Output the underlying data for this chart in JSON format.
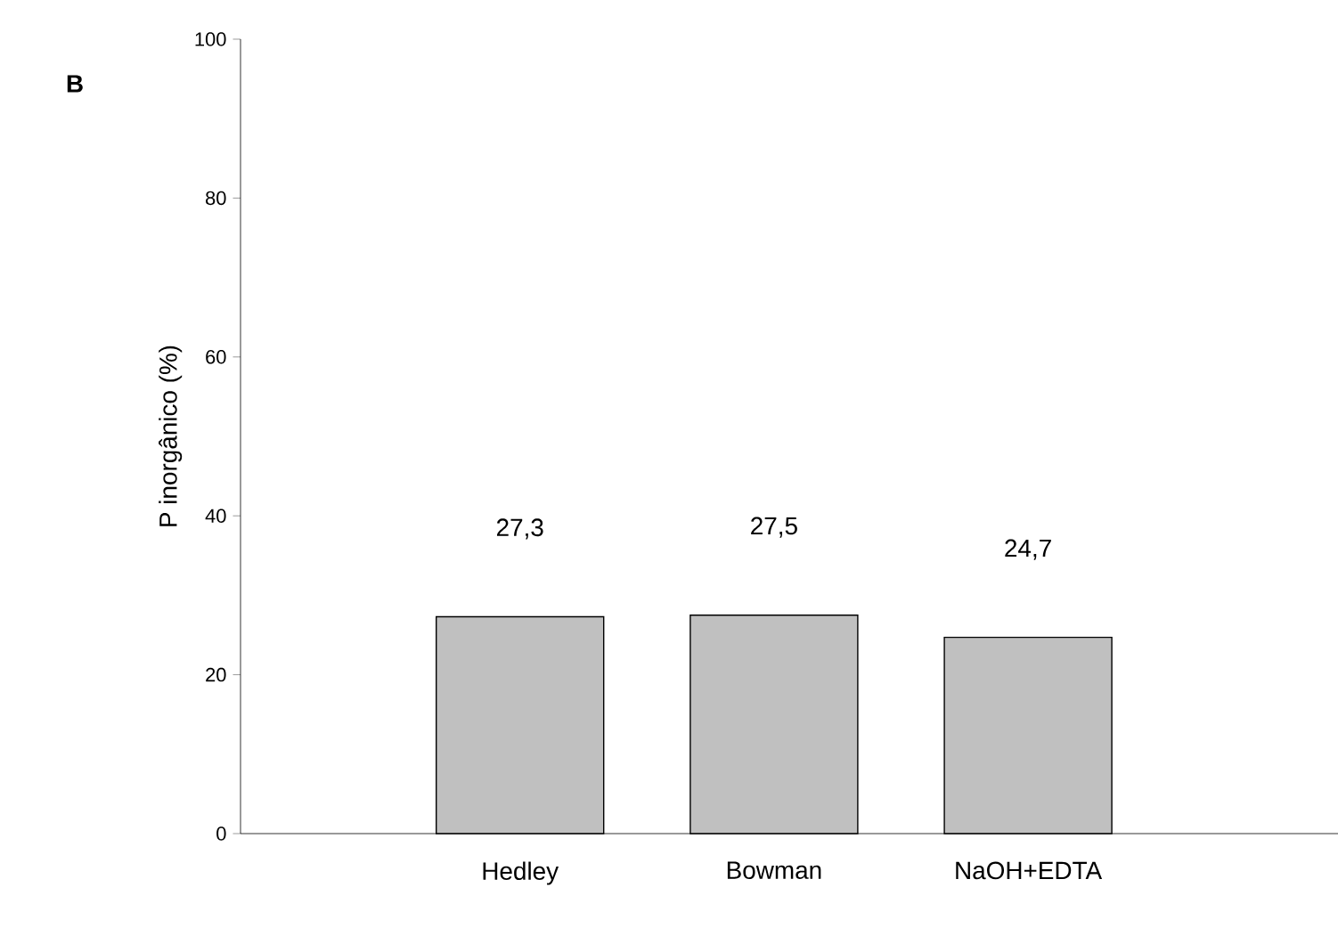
{
  "chart_data": {
    "type": "bar",
    "ylabel": "P inorgânico (%)",
    "categories": [
      "Hedley",
      "Bowman",
      "NaOH+EDTA"
    ],
    "values": [
      27.3,
      27.5,
      24.7
    ],
    "value_labels": [
      "27,3",
      "27,5",
      "24,7"
    ],
    "color": "#c0c0c0",
    "ylim": [
      0,
      100
    ],
    "yticks": [
      0,
      20,
      40,
      60,
      80,
      100
    ],
    "grid": false,
    "annotations": [
      "B"
    ]
  }
}
